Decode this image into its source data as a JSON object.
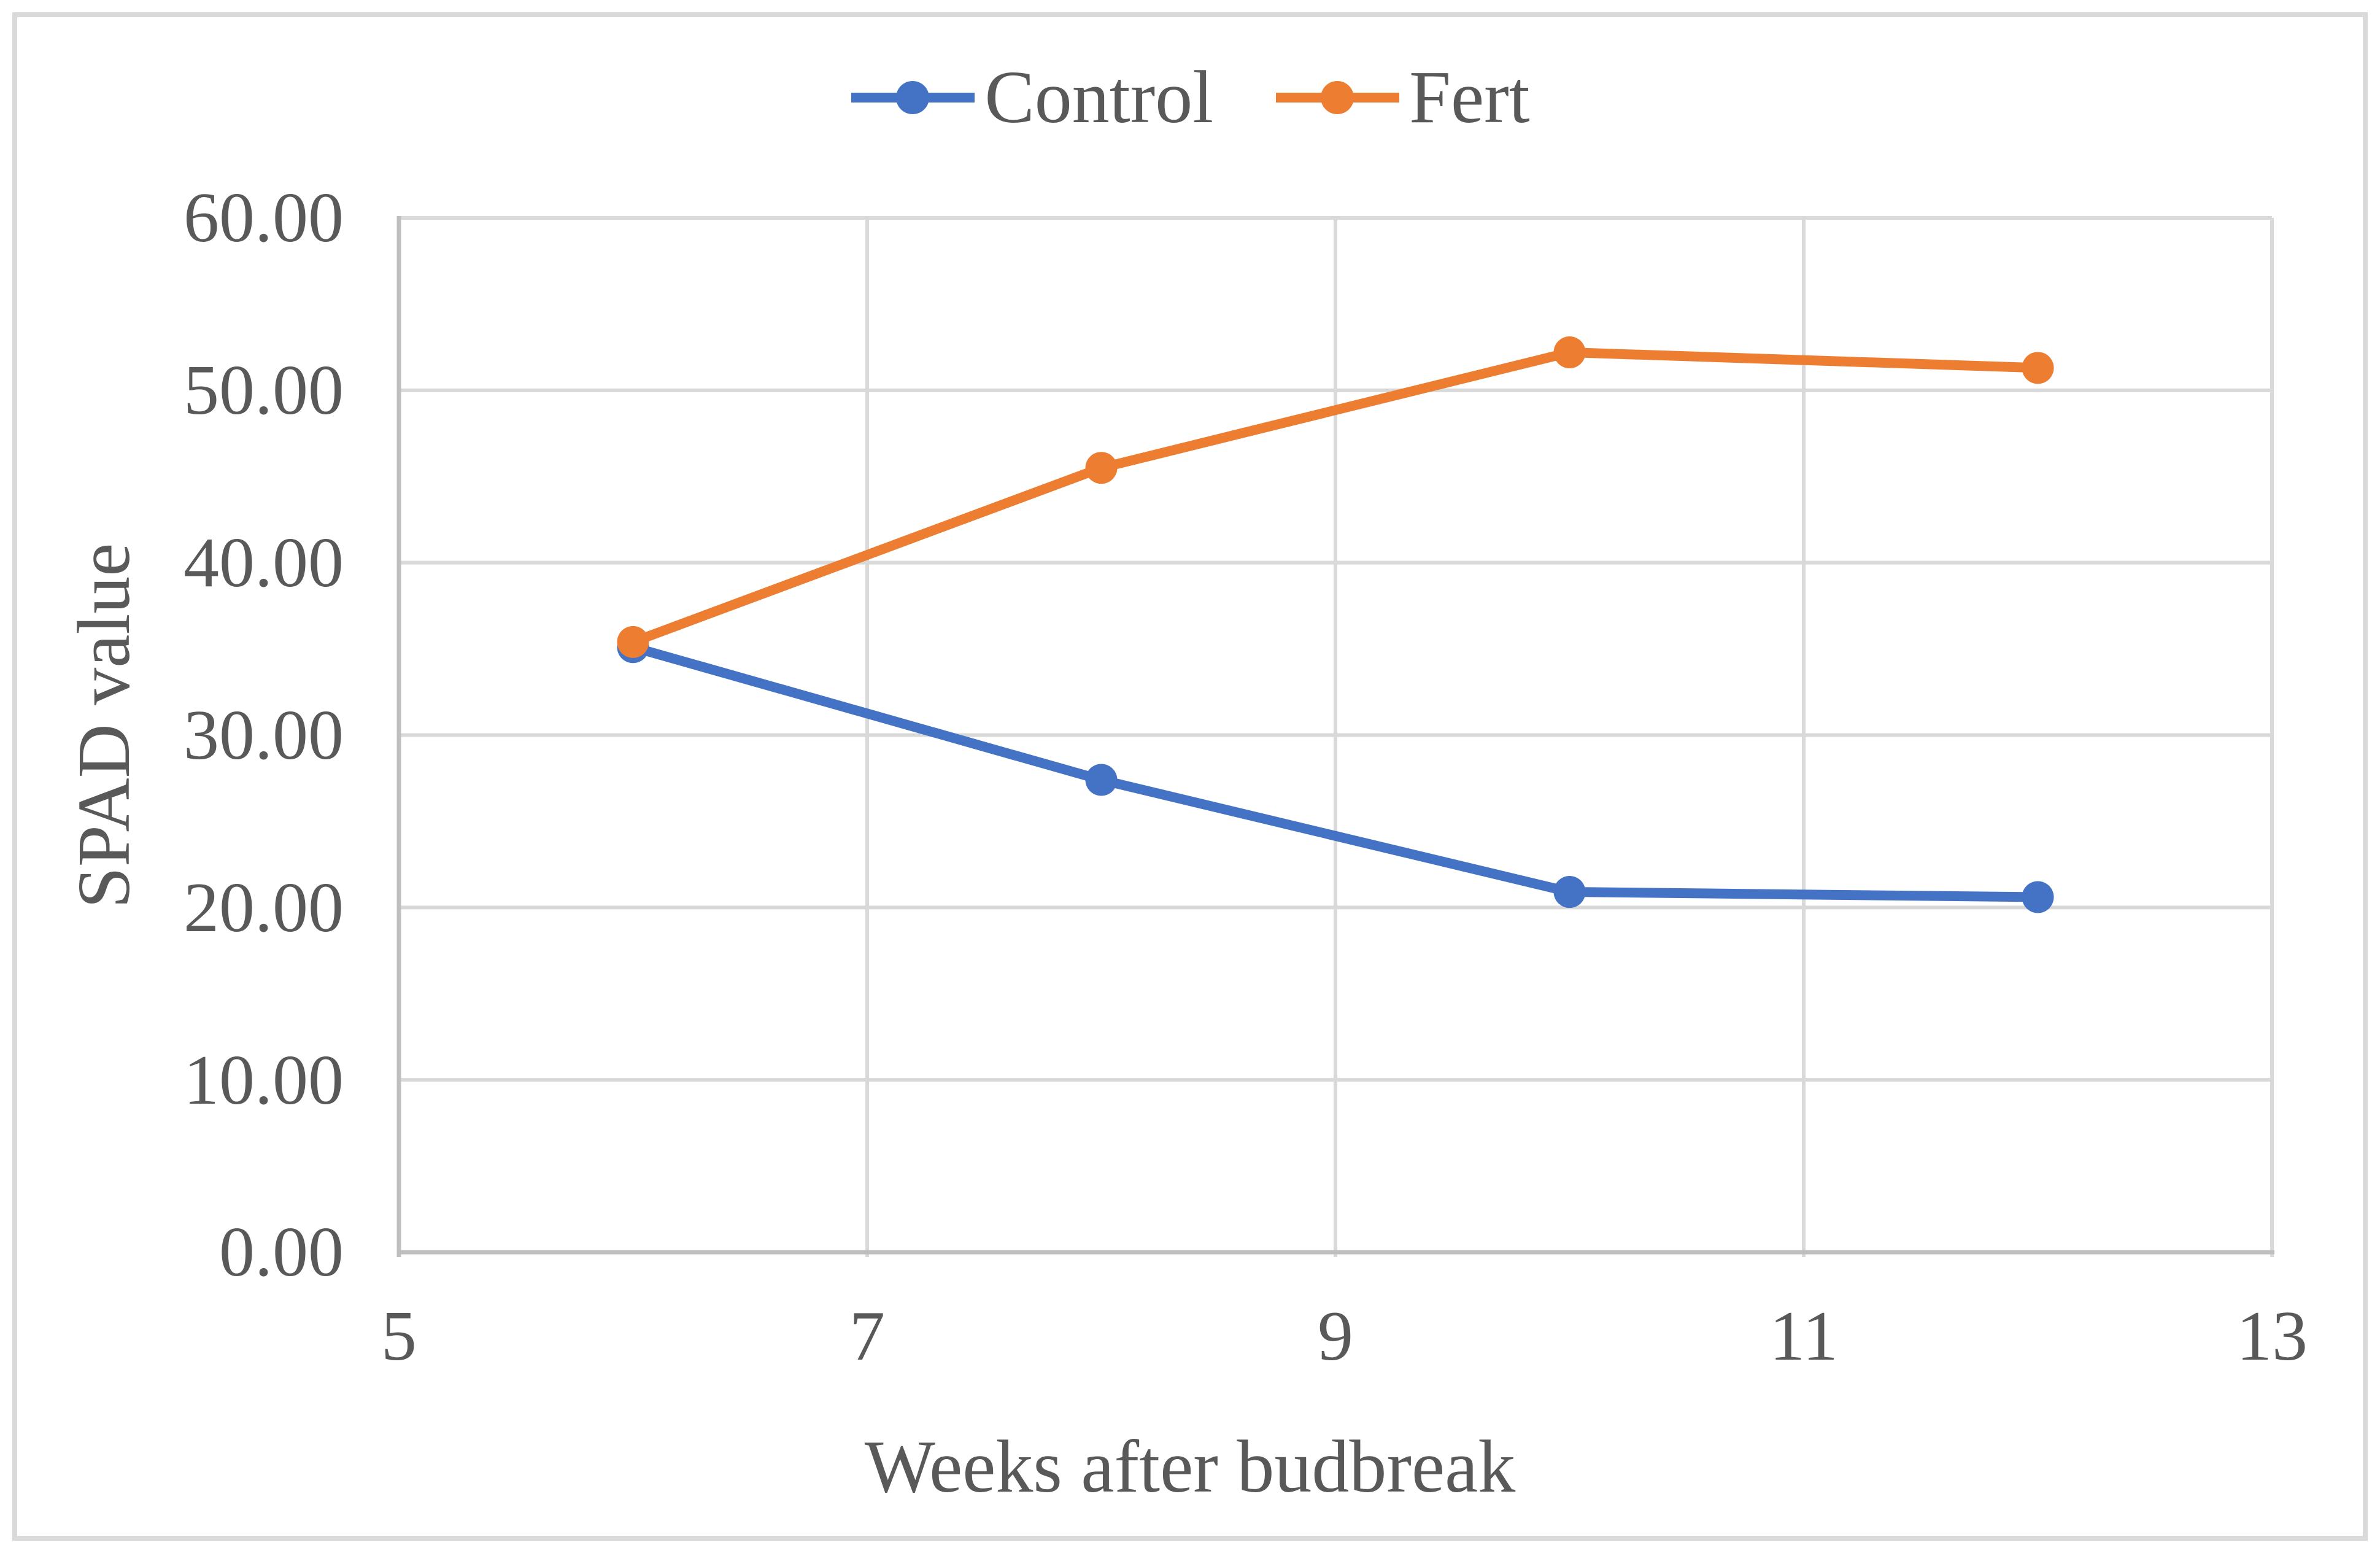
{
  "legend": {
    "items": [
      {
        "label": "Control",
        "color": "#4472C4"
      },
      {
        "label": "Fert",
        "color": "#ED7D31"
      }
    ]
  },
  "y_axis": {
    "title": "SPAD value",
    "tick_labels": [
      "60.00",
      "50.00",
      "40.00",
      "30.00",
      "20.00",
      "10.00",
      "0.00"
    ]
  },
  "x_axis": {
    "title": "Weeks after budbreak",
    "tick_labels": [
      "5",
      "7",
      "9",
      "11",
      "13"
    ]
  },
  "chart_data": {
    "type": "line",
    "x": [
      6,
      8,
      10,
      12
    ],
    "series": [
      {
        "name": "Control",
        "color": "#4472C4",
        "values": [
          35.1,
          27.4,
          20.9,
          20.6
        ]
      },
      {
        "name": "Fert",
        "color": "#ED7D31",
        "values": [
          35.4,
          45.5,
          52.2,
          51.3
        ]
      }
    ],
    "title": "",
    "xlabel": "Weeks after budbreak",
    "ylabel": "SPAD value",
    "xlim": [
      5,
      13
    ],
    "ylim": [
      0,
      60
    ],
    "x_tick_values": [
      5,
      7,
      9,
      11,
      13
    ],
    "y_tick_values": [
      60,
      50,
      40,
      30,
      20,
      10,
      0
    ],
    "x_gridlines": [
      7,
      9,
      11,
      13
    ],
    "y_gridlines": [
      10,
      20,
      30,
      40,
      50,
      60
    ],
    "grid": true,
    "legend_position": "top-center",
    "marker": "circle"
  },
  "colors": {
    "text": "#595959",
    "gridline": "#D9D9D9",
    "axis_line": "#BFBFBF",
    "figure_border": "#D9D9D9",
    "background": "#FFFFFF"
  }
}
